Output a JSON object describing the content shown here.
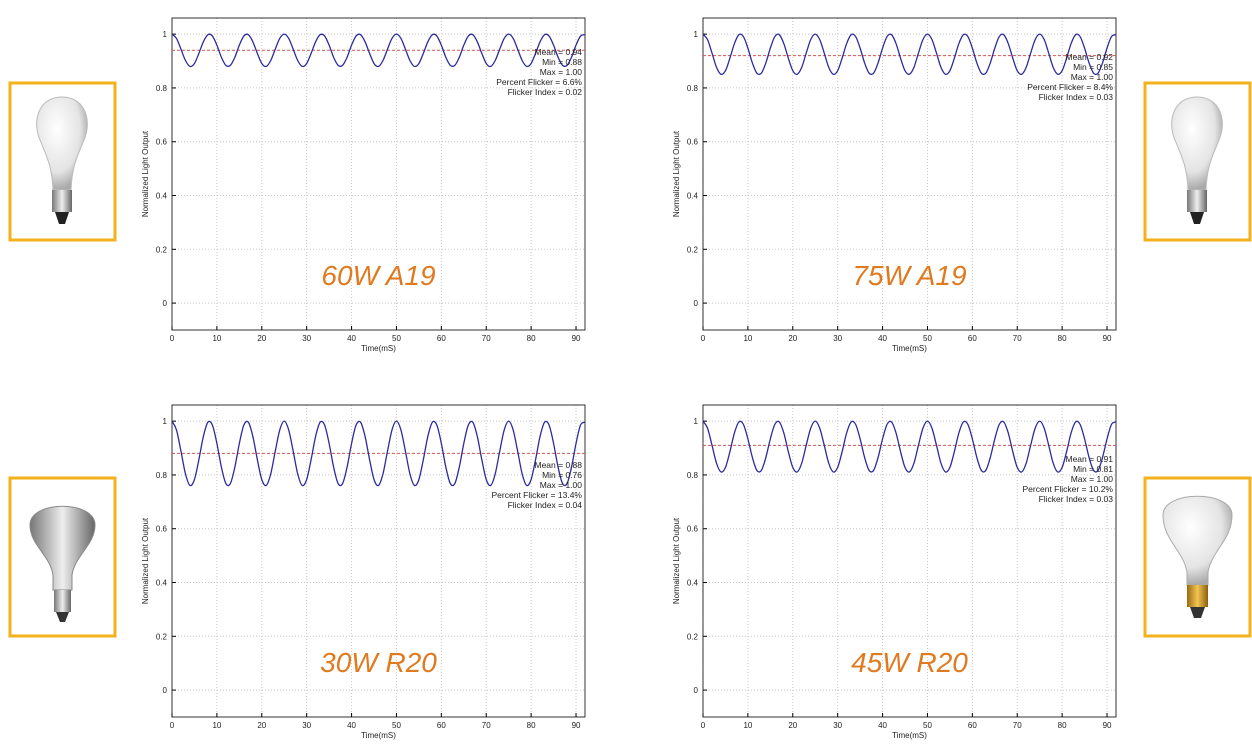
{
  "chart_data": [
    {
      "type": "line",
      "title": "60W A19",
      "ylabel": "Normalized Light Output",
      "xlabel": "Time(mS)",
      "color": "#2b2b9e",
      "mean_color": "#d9534f",
      "title_color": "#e07a1f",
      "grid": true,
      "stats": [
        {
          "label": "Mean = 0.94",
          "value": 0.94
        },
        {
          "label": "Min = 0.88",
          "value": 0.88
        },
        {
          "label": "Max = 1.00",
          "value": 1.0
        },
        {
          "label": "Percent Flicker = 6.6%",
          "value": 6.6
        },
        {
          "label": "Flicker Index = 0.02",
          "value": 0.02
        }
      ],
      "xlim": [
        0,
        92
      ],
      "xticks": [
        0,
        10,
        20,
        30,
        40,
        50,
        60,
        70,
        80,
        90
      ],
      "ylim": [
        -0.1,
        1.06
      ],
      "yticks": [
        0,
        0.2,
        0.4,
        0.6,
        0.8,
        1
      ],
      "x": [
        0,
        1,
        2,
        3,
        4,
        5,
        6,
        7,
        8,
        9,
        10,
        11,
        12,
        13,
        14,
        15,
        16,
        17,
        18,
        19,
        20,
        21,
        22,
        23,
        24,
        25,
        26,
        27,
        28,
        29,
        30,
        31,
        32,
        33,
        34,
        35,
        36,
        37,
        38,
        39,
        40,
        41,
        42,
        43,
        44,
        45,
        46,
        47,
        48,
        49,
        50,
        51,
        52,
        53,
        54,
        55,
        56,
        57,
        58,
        59,
        60,
        61,
        62,
        63,
        64,
        65,
        66,
        67,
        68,
        69,
        70,
        71,
        72,
        73,
        74,
        75,
        76,
        77,
        78,
        79,
        80,
        81,
        82,
        83,
        84,
        85,
        86,
        87,
        88,
        89,
        90,
        91,
        92
      ],
      "values": [
        1.0,
        0.984,
        0.944,
        0.902,
        0.88,
        0.891,
        0.929,
        0.972,
        0.998,
        0.993,
        0.959,
        0.914,
        0.884,
        0.884,
        0.914,
        0.959,
        0.993,
        0.998,
        0.972,
        0.929,
        0.891,
        0.88,
        0.902,
        0.944,
        0.984,
        1.0,
        0.984,
        0.944,
        0.902,
        0.88,
        0.891,
        0.929,
        0.972,
        0.998,
        0.993,
        0.959,
        0.914,
        0.884,
        0.884,
        0.914,
        0.959,
        0.993,
        0.998,
        0.972,
        0.929,
        0.891,
        0.88,
        0.902,
        0.944,
        0.984,
        1.0,
        0.984,
        0.944,
        0.902,
        0.88,
        0.891,
        0.929,
        0.972,
        0.998,
        0.993,
        0.959,
        0.914,
        0.884,
        0.884,
        0.914,
        0.959,
        0.993,
        0.998,
        0.972,
        0.929,
        0.891,
        0.88,
        0.902,
        0.944,
        0.984,
        1.0,
        0.984,
        0.944,
        0.902,
        0.88,
        0.891,
        0.929,
        0.972,
        0.998,
        0.993,
        0.959,
        0.914,
        0.884,
        0.884,
        0.914,
        0.959,
        0.993,
        0.998
      ]
    },
    {
      "type": "line",
      "title": "75W A19",
      "ylabel": "Normalized Light Output",
      "xlabel": "Time(mS)",
      "color": "#2b2b9e",
      "mean_color": "#d9534f",
      "title_color": "#e07a1f",
      "grid": true,
      "stats": [
        {
          "label": "Mean = 0.92",
          "value": 0.92
        },
        {
          "label": "Min = 0.85",
          "value": 0.85
        },
        {
          "label": "Max = 1.00",
          "value": 1.0
        },
        {
          "label": "Percent Flicker = 8.4%",
          "value": 8.4
        },
        {
          "label": "Flicker Index = 0.03",
          "value": 0.03
        }
      ],
      "xlim": [
        0,
        92
      ],
      "xticks": [
        0,
        10,
        20,
        30,
        40,
        50,
        60,
        70,
        80,
        90
      ],
      "ylim": [
        -0.1,
        1.06
      ],
      "yticks": [
        0,
        0.2,
        0.4,
        0.6,
        0.8,
        1
      ],
      "x": [
        0,
        1,
        2,
        3,
        4,
        5,
        6,
        7,
        8,
        9,
        10,
        11,
        12,
        13,
        14,
        15,
        16,
        17,
        18,
        19,
        20,
        21,
        22,
        23,
        24,
        25,
        26,
        27,
        28,
        29,
        30,
        31,
        32,
        33,
        34,
        35,
        36,
        37,
        38,
        39,
        40,
        41,
        42,
        43,
        44,
        45,
        46,
        47,
        48,
        49,
        50,
        51,
        52,
        53,
        54,
        55,
        56,
        57,
        58,
        59,
        60,
        61,
        62,
        63,
        64,
        65,
        66,
        67,
        68,
        69,
        70,
        71,
        72,
        73,
        74,
        75,
        76,
        77,
        78,
        79,
        80,
        81,
        82,
        83,
        84,
        85,
        86,
        87,
        88,
        89,
        90,
        91,
        92
      ],
      "values": [
        1.0,
        0.98,
        0.93,
        0.877,
        0.851,
        0.864,
        0.911,
        0.965,
        0.998,
        0.991,
        0.948,
        0.893,
        0.855,
        0.855,
        0.893,
        0.948,
        0.991,
        0.998,
        0.965,
        0.911,
        0.864,
        0.851,
        0.877,
        0.93,
        0.98,
        1.0,
        0.98,
        0.93,
        0.877,
        0.851,
        0.864,
        0.911,
        0.965,
        0.998,
        0.991,
        0.948,
        0.893,
        0.855,
        0.855,
        0.893,
        0.948,
        0.991,
        0.998,
        0.965,
        0.911,
        0.864,
        0.851,
        0.877,
        0.93,
        0.98,
        1.0,
        0.98,
        0.93,
        0.877,
        0.851,
        0.864,
        0.911,
        0.965,
        0.998,
        0.991,
        0.948,
        0.893,
        0.855,
        0.855,
        0.893,
        0.948,
        0.991,
        0.998,
        0.965,
        0.911,
        0.864,
        0.851,
        0.877,
        0.93,
        0.98,
        1.0,
        0.98,
        0.93,
        0.877,
        0.851,
        0.864,
        0.911,
        0.965,
        0.998,
        0.991,
        0.948,
        0.893,
        0.855,
        0.855,
        0.893,
        0.948,
        0.991,
        0.998
      ]
    },
    {
      "type": "line",
      "title": "30W R20",
      "ylabel": "Normalized Light Output",
      "xlabel": "Time(mS)",
      "color": "#2b2b9e",
      "mean_color": "#d9534f",
      "title_color": "#e07a1f",
      "grid": true,
      "stats": [
        {
          "label": "Mean = 0.88",
          "value": 0.88
        },
        {
          "label": "Min = 0.76",
          "value": 0.76
        },
        {
          "label": "Max = 1.00",
          "value": 1.0
        },
        {
          "label": "Percent Flicker = 13.4%",
          "value": 13.4
        },
        {
          "label": "Flicker Index = 0.04",
          "value": 0.04
        }
      ],
      "xlim": [
        0,
        92
      ],
      "xticks": [
        0,
        10,
        20,
        30,
        40,
        50,
        60,
        70,
        80,
        90
      ],
      "ylim": [
        -0.1,
        1.06
      ],
      "yticks": [
        0,
        0.2,
        0.4,
        0.6,
        0.8,
        1
      ],
      "x": [
        0,
        1,
        2,
        3,
        4,
        5,
        6,
        7,
        8,
        9,
        10,
        11,
        12,
        13,
        14,
        15,
        16,
        17,
        18,
        19,
        20,
        21,
        22,
        23,
        24,
        25,
        26,
        27,
        28,
        29,
        30,
        31,
        32,
        33,
        34,
        35,
        36,
        37,
        38,
        39,
        40,
        41,
        42,
        43,
        44,
        45,
        46,
        47,
        48,
        49,
        50,
        51,
        52,
        53,
        54,
        55,
        56,
        57,
        58,
        59,
        60,
        61,
        62,
        63,
        64,
        65,
        66,
        67,
        68,
        69,
        70,
        71,
        72,
        73,
        74,
        75,
        76,
        77,
        78,
        79,
        80,
        81,
        82,
        83,
        84,
        85,
        86,
        87,
        88,
        89,
        90,
        91,
        92
      ],
      "values": [
        1.0,
        0.967,
        0.888,
        0.804,
        0.761,
        0.783,
        0.858,
        0.944,
        0.996,
        0.985,
        0.917,
        0.829,
        0.768,
        0.768,
        0.829,
        0.917,
        0.985,
        0.996,
        0.944,
        0.858,
        0.783,
        0.761,
        0.804,
        0.888,
        0.967,
        1.0,
        0.967,
        0.888,
        0.804,
        0.761,
        0.783,
        0.858,
        0.944,
        0.996,
        0.985,
        0.917,
        0.829,
        0.768,
        0.768,
        0.829,
        0.917,
        0.985,
        0.996,
        0.944,
        0.858,
        0.783,
        0.761,
        0.804,
        0.888,
        0.967,
        1.0,
        0.967,
        0.888,
        0.804,
        0.761,
        0.783,
        0.858,
        0.944,
        0.996,
        0.985,
        0.917,
        0.829,
        0.768,
        0.768,
        0.829,
        0.917,
        0.985,
        0.996,
        0.944,
        0.858,
        0.783,
        0.761,
        0.804,
        0.888,
        0.967,
        1.0,
        0.967,
        0.888,
        0.804,
        0.761,
        0.783,
        0.858,
        0.944,
        0.996,
        0.985,
        0.917,
        0.829,
        0.768,
        0.768,
        0.829,
        0.917,
        0.985,
        0.996
      ]
    },
    {
      "type": "line",
      "title": "45W R20",
      "ylabel": "Normalized Light Output",
      "xlabel": "Time(mS)",
      "color": "#2b2b9e",
      "mean_color": "#d9534f",
      "title_color": "#e07a1f",
      "grid": true,
      "stats": [
        {
          "label": "Mean = 0.91",
          "value": 0.91
        },
        {
          "label": "Min = 0.81",
          "value": 0.81
        },
        {
          "label": "Max = 1.00",
          "value": 1.0
        },
        {
          "label": "Percent Flicker = 10.2%",
          "value": 10.2
        },
        {
          "label": "Flicker Index = 0.03",
          "value": 0.03
        }
      ],
      "xlim": [
        0,
        92
      ],
      "xticks": [
        0,
        10,
        20,
        30,
        40,
        50,
        60,
        70,
        80,
        90
      ],
      "ylim": [
        -0.1,
        1.06
      ],
      "yticks": [
        0,
        0.2,
        0.4,
        0.6,
        0.8,
        1
      ],
      "x": [
        0,
        1,
        2,
        3,
        4,
        5,
        6,
        7,
        8,
        9,
        10,
        11,
        12,
        13,
        14,
        15,
        16,
        17,
        18,
        19,
        20,
        21,
        22,
        23,
        24,
        25,
        26,
        27,
        28,
        29,
        30,
        31,
        32,
        33,
        34,
        35,
        36,
        37,
        38,
        39,
        40,
        41,
        42,
        43,
        44,
        45,
        46,
        47,
        48,
        49,
        50,
        51,
        52,
        53,
        54,
        55,
        56,
        57,
        58,
        59,
        60,
        61,
        62,
        63,
        64,
        65,
        66,
        67,
        68,
        69,
        70,
        71,
        72,
        73,
        74,
        75,
        76,
        77,
        78,
        79,
        80,
        81,
        82,
        83,
        84,
        85,
        86,
        87,
        88,
        89,
        90,
        91,
        92
      ],
      "values": [
        1.0,
        0.974,
        0.911,
        0.844,
        0.811,
        0.828,
        0.887,
        0.956,
        0.997,
        0.988,
        0.934,
        0.865,
        0.817,
        0.817,
        0.865,
        0.934,
        0.988,
        0.997,
        0.956,
        0.887,
        0.828,
        0.811,
        0.844,
        0.911,
        0.974,
        1.0,
        0.974,
        0.911,
        0.844,
        0.811,
        0.828,
        0.887,
        0.956,
        0.997,
        0.988,
        0.934,
        0.865,
        0.817,
        0.817,
        0.865,
        0.934,
        0.988,
        0.997,
        0.956,
        0.887,
        0.828,
        0.811,
        0.844,
        0.911,
        0.974,
        1.0,
        0.974,
        0.911,
        0.844,
        0.811,
        0.828,
        0.887,
        0.956,
        0.997,
        0.988,
        0.934,
        0.865,
        0.817,
        0.817,
        0.865,
        0.934,
        0.988,
        0.997,
        0.956,
        0.887,
        0.828,
        0.811,
        0.844,
        0.911,
        0.974,
        1.0,
        0.974,
        0.911,
        0.844,
        0.811,
        0.828,
        0.887,
        0.956,
        0.997,
        0.988,
        0.934,
        0.865,
        0.817,
        0.817,
        0.865,
        0.934,
        0.988,
        0.997
      ]
    }
  ]
}
